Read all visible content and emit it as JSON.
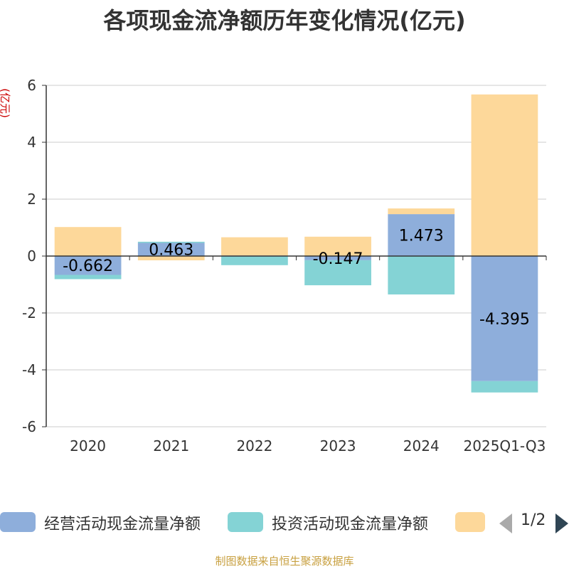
{
  "title": "各项现金流净额历年变化情况(亿元)",
  "source": "制图数据来自恒生聚源数据库",
  "pager": "1/2",
  "colors": {
    "operating": "#8eaedb",
    "investing": "#84d3d5",
    "financing": "#fdd89a",
    "axis": "#333333",
    "grid": "#cccccc",
    "ylabel": "#cc0000",
    "arrow_disabled": "#aaaaaa",
    "arrow_active": "#2f4554"
  },
  "chart_data": {
    "type": "bar",
    "stacked": true,
    "title": "各项现金流净额历年变化情况(亿元)",
    "ylabel": "(亿元)",
    "ylim": [
      -6,
      6
    ],
    "yticks": [
      -6,
      -4,
      -2,
      0,
      2,
      4,
      6
    ],
    "grid": true,
    "legend_position": "bottom",
    "categories": [
      "2020",
      "2021",
      "2022",
      "2023",
      "2024",
      "2025Q1-Q3"
    ],
    "series": [
      {
        "name": "经营活动现金流量净额",
        "color": "#8eaedb",
        "values": [
          -0.662,
          0.463,
          0.02,
          -0.147,
          1.473,
          -4.395
        ],
        "labels": [
          "-0.662",
          "0.463",
          "",
          "-0.147",
          "1.473",
          "-4.395"
        ]
      },
      {
        "name": "投资活动现金流量净额",
        "color": "#84d3d5",
        "values": [
          -0.15,
          0.04,
          -0.32,
          -0.88,
          -1.35,
          -0.4
        ]
      },
      {
        "name": "",
        "color": "#fdd89a",
        "values": [
          1.02,
          -0.15,
          0.64,
          0.68,
          0.2,
          5.68
        ]
      }
    ]
  }
}
